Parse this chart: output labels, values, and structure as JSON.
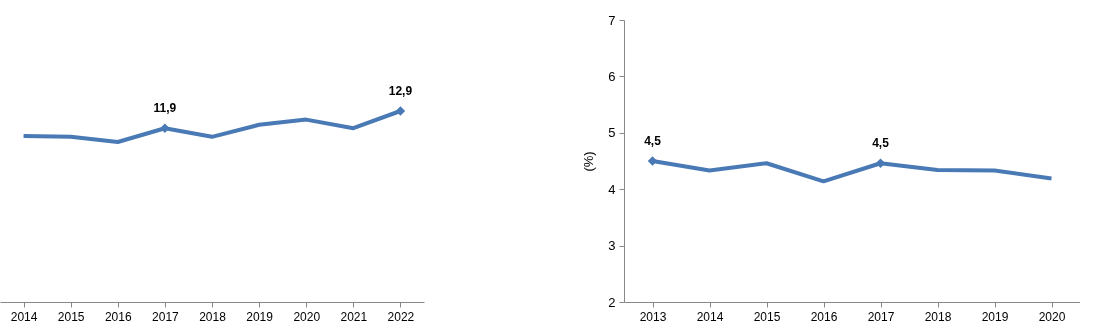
{
  "chart_data": [
    {
      "type": "line",
      "categories": [
        "2014",
        "2015",
        "2016",
        "2017",
        "2018",
        "2019",
        "2020",
        "2021",
        "2022"
      ],
      "series": [
        {
          "color": "#4a7ab5",
          "values": [
            11.45,
            11.4,
            11.1,
            11.9,
            11.4,
            12.1,
            12.4,
            11.9,
            12.9
          ],
          "value_labels": [
            null,
            null,
            null,
            "11,9",
            null,
            null,
            null,
            null,
            "12,9"
          ]
        }
      ],
      "tick_labels": "x",
      "grid": false
    },
    {
      "type": "line",
      "ylabel": "(%)",
      "categories": [
        "2013",
        "2014",
        "2015",
        "2016",
        "2017",
        "2018",
        "2019",
        "2020"
      ],
      "series": [
        {
          "color": "#4a7ab5",
          "values": [
            4.5,
            4.33,
            4.46,
            4.14,
            4.46,
            4.34,
            4.33,
            4.19
          ],
          "value_labels": [
            "4,5",
            null,
            null,
            null,
            "4,5",
            null,
            null,
            null
          ]
        }
      ],
      "ylim": [
        2,
        7
      ],
      "yticks": [
        2,
        3,
        4,
        5,
        6,
        7
      ],
      "grid": false
    }
  ]
}
